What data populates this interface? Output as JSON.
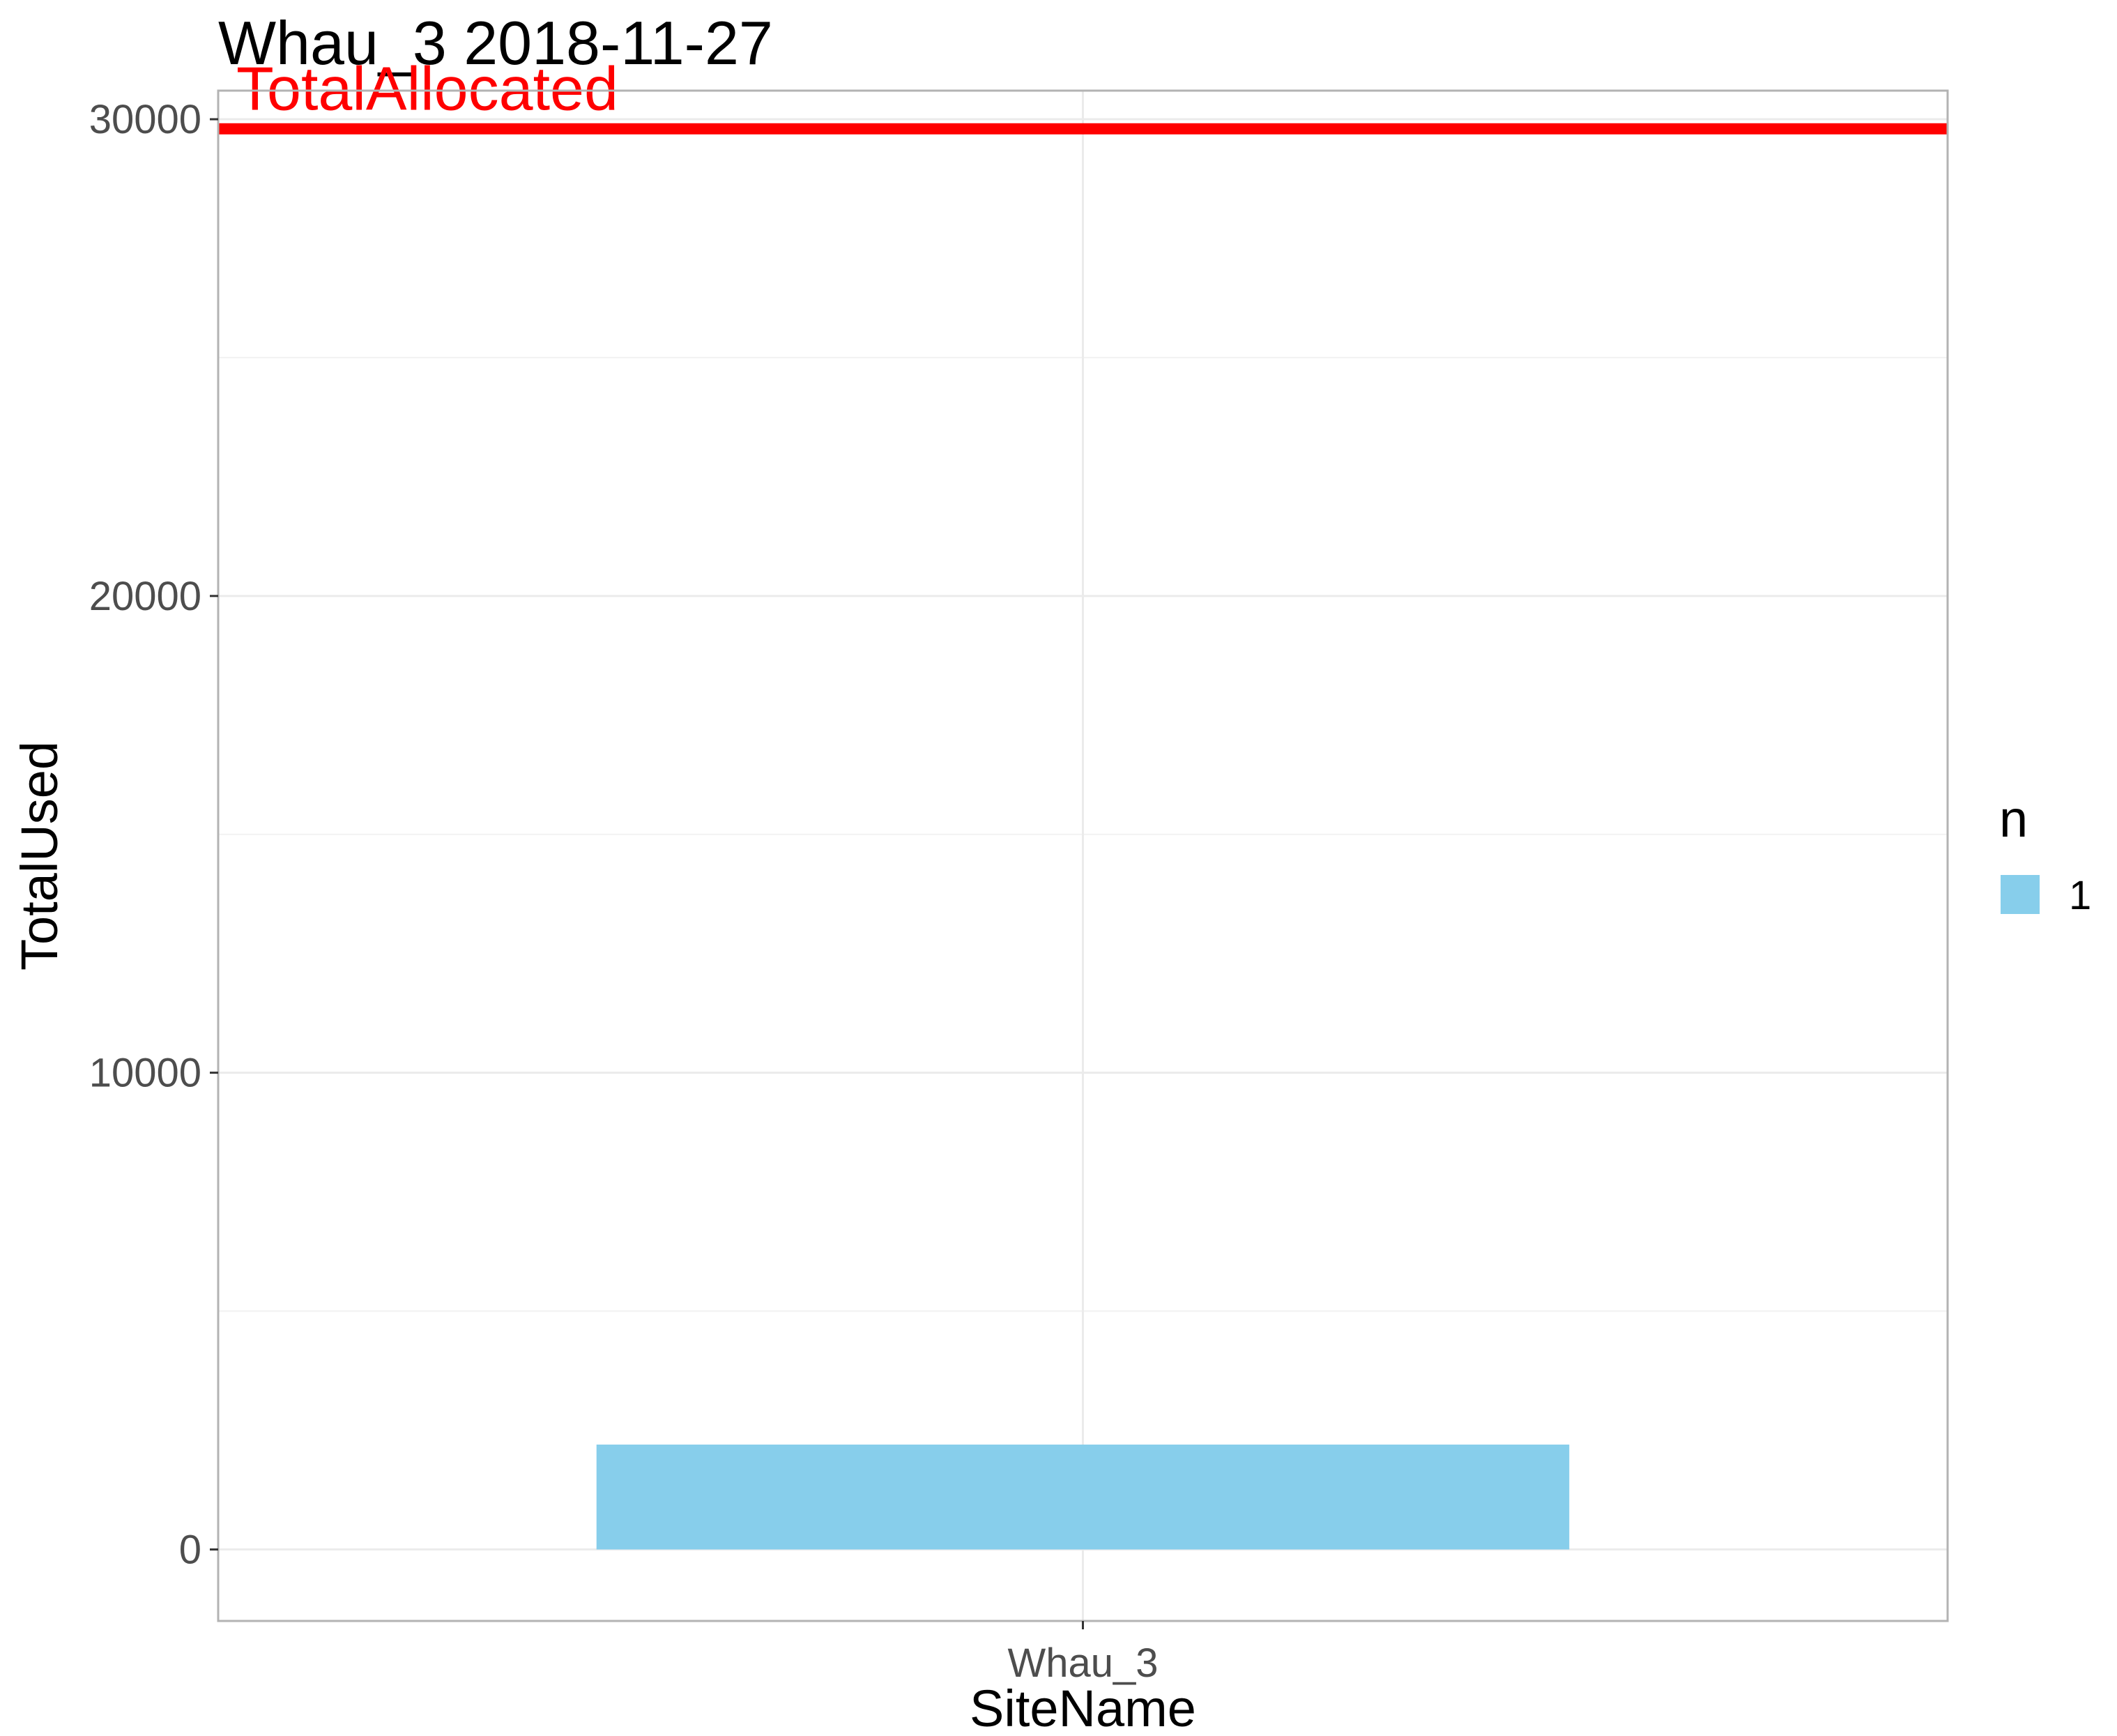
{
  "chart_data": {
    "type": "bar",
    "title": "Whau_3 2018-11-27",
    "xlabel": "SiteName",
    "ylabel": "TotalUsed",
    "categories": [
      "Whau_3"
    ],
    "series": [
      {
        "name": "1",
        "values": [
          2200
        ]
      }
    ],
    "ylim": [
      -1500,
      30600
    ],
    "y_ticks": [
      0,
      10000,
      20000,
      30000
    ],
    "y_tick_labels": [
      "0",
      "10000",
      "20000",
      "30000"
    ],
    "grid": true,
    "reference_line": {
      "label": "TotalAllocated",
      "value": 29800,
      "color": "#ff0000"
    },
    "legend": {
      "title": "n",
      "position": "right",
      "items": [
        {
          "label": "1",
          "color": "#87ceeb"
        }
      ]
    },
    "colors": {
      "bar": "#87ceeb",
      "reference_line": "#ff0000",
      "grid": "#ebebeb",
      "panel_border": "#b3b3b3"
    }
  }
}
